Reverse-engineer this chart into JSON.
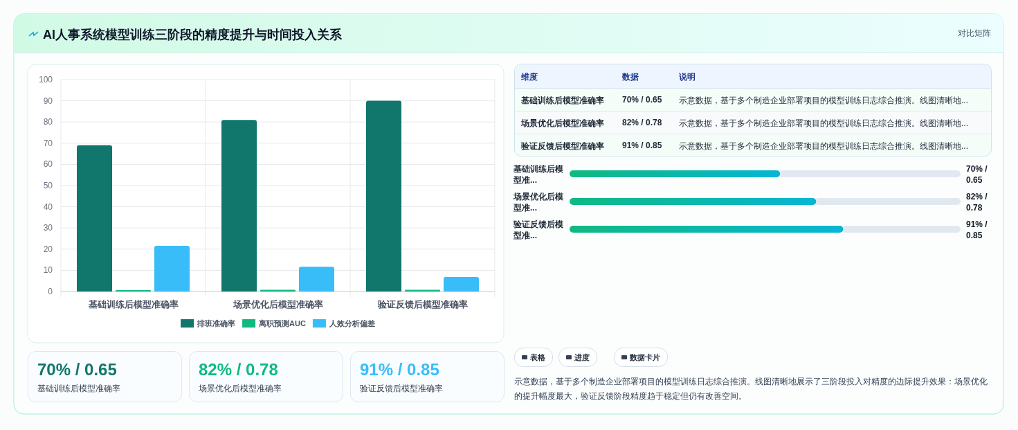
{
  "chart_data": [
    {
      "type": "bar",
      "title": "AI人事系统模型训练三阶段的精度提升与时间投入关系",
      "categories": [
        "基础训练后模型准确率",
        "场景优化后模型准确率",
        "验证反馈后模型准确率"
      ],
      "series": [
        {
          "name": "排班准确率",
          "color": "#11766c",
          "values": [
            69,
            81,
            90
          ]
        },
        {
          "name": "离职预测AUC",
          "color": "#10b981",
          "values": [
            0.65,
            0.78,
            0.85
          ]
        },
        {
          "name": "人效分析偏差",
          "color": "#38bdf8",
          "values": [
            21.6,
            11.7,
            6.9
          ]
        }
      ],
      "ylim": [
        0,
        100
      ],
      "yticks": [
        0,
        10,
        20,
        30,
        40,
        50,
        60,
        70,
        80,
        90,
        100
      ],
      "grid": true,
      "legend": "bottom"
    },
    {
      "type": "bar",
      "orientation": "horizontal",
      "xlim": [
        0,
        130
      ],
      "tick_labels": "y",
      "categories": [
        "基础训练后模型准...",
        "场景优化后模型准...",
        "验证反馈后模型准..."
      ],
      "values": [
        70,
        82,
        91
      ],
      "color": "#10b981",
      "value_labels": [
        "70% / 0.65",
        "82% / 0.78",
        "91% / 0.85"
      ]
    },
    {
      "type": "other",
      "annotations": [
        "对比矩阵",
        "维度",
        "数据",
        "说明",
        "基础训练后模型准确率",
        "70% / 0.65",
        "示意数据，基于多个制造企业部署项目的模型训练日志综合推演。线图清晰地...",
        "场景优化后模型准确率",
        "82% / 0.78",
        "示意数据，基于多个制造企业部署项目的模型训练日志综合推演。线图清晰地...",
        "验证反馈后模型准确率",
        "91% / 0.85",
        "示意数据，基于多个制造企业部署项目的模型训练日志综合推演。线图清晰地...",
        "70% / 0.65",
        "基础训练后模型准确率",
        "82% / 0.78",
        "场景优化后模型准确率",
        "91% / 0.85",
        "验证反馈后模型准确率",
        "表格",
        "进度",
        "数据卡片",
        "示意数据，基于多个制造企业部署项目的模型训练日志综合推演。线图清晰地展示了三阶段投入对精度的边际提升效果：场景优化的提升幅度最大，验证反馈阶段精度趋于稳定但仍有改善空间。"
      ]
    }
  ]
}
